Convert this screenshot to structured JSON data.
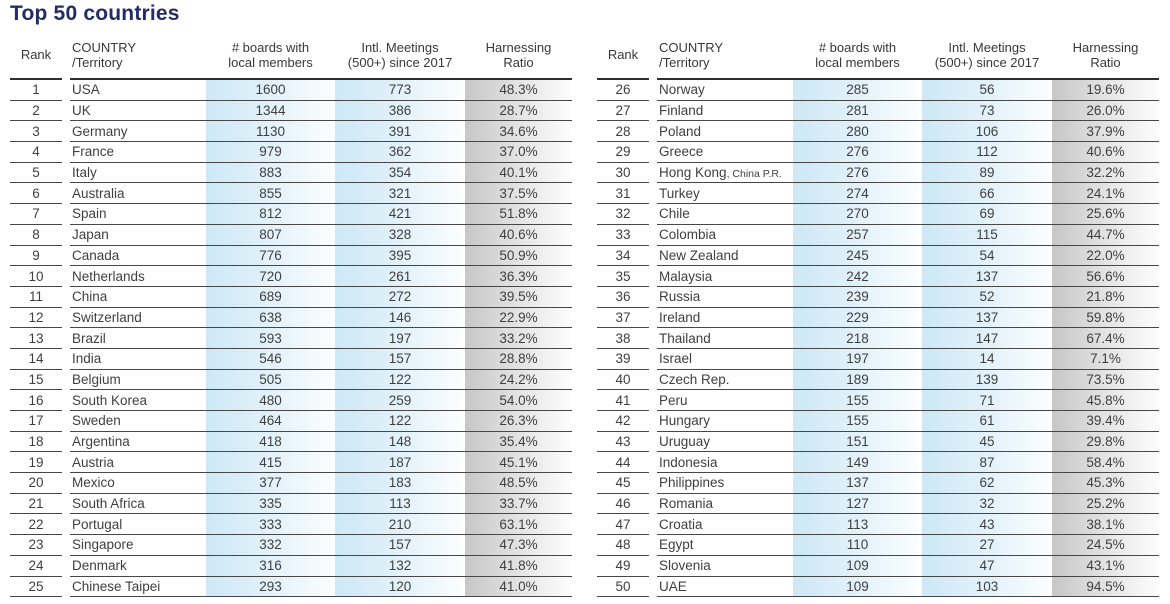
{
  "title": "Top 50 countries",
  "colors": {
    "title_navy": "#232d64",
    "column_blue": "#cde8f6",
    "column_gray": "#c6c6c6"
  },
  "headers": {
    "rank": "Rank",
    "country_line1": "COUNTRY",
    "country_line2": "/Territory",
    "boards_line1": "# boards with",
    "boards_line2": "local members",
    "meetings_line1": "Intl. Meetings",
    "meetings_line2": "(500+) since 2017",
    "ratio_line1": "Harnessing",
    "ratio_line2": "Ratio"
  },
  "tables": [
    {
      "name": "ranks-1-25",
      "rows": [
        [
          "1",
          "USA",
          "1600",
          "773",
          "48.3%"
        ],
        [
          "2",
          "UK",
          "1344",
          "386",
          "28.7%"
        ],
        [
          "3",
          "Germany",
          "1130",
          "391",
          "34.6%"
        ],
        [
          "4",
          "France",
          "979",
          "362",
          "37.0%"
        ],
        [
          "5",
          "Italy",
          "883",
          "354",
          "40.1%"
        ],
        [
          "6",
          "Australia",
          "855",
          "321",
          "37.5%"
        ],
        [
          "7",
          "Spain",
          "812",
          "421",
          "51.8%"
        ],
        [
          "8",
          "Japan",
          "807",
          "328",
          "40.6%"
        ],
        [
          "9",
          "Canada",
          "776",
          "395",
          "50.9%"
        ],
        [
          "10",
          "Netherlands",
          "720",
          "261",
          "36.3%"
        ],
        [
          "11",
          "China",
          "689",
          "272",
          "39.5%"
        ],
        [
          "12",
          "Switzerland",
          "638",
          "146",
          "22.9%"
        ],
        [
          "13",
          "Brazil",
          "593",
          "197",
          "33.2%"
        ],
        [
          "14",
          "India",
          "546",
          "157",
          "28.8%"
        ],
        [
          "15",
          "Belgium",
          "505",
          "122",
          "24.2%"
        ],
        [
          "16",
          "South Korea",
          "480",
          "259",
          "54.0%"
        ],
        [
          "17",
          "Sweden",
          "464",
          "122",
          "26.3%"
        ],
        [
          "18",
          "Argentina",
          "418",
          "148",
          "35.4%"
        ],
        [
          "19",
          "Austria",
          "415",
          "187",
          "45.1%"
        ],
        [
          "20",
          "Mexico",
          "377",
          "183",
          "48.5%"
        ],
        [
          "21",
          "South Africa",
          "335",
          "113",
          "33.7%"
        ],
        [
          "22",
          "Portugal",
          "333",
          "210",
          "63.1%"
        ],
        [
          "23",
          "Singapore",
          "332",
          "157",
          "47.3%"
        ],
        [
          "24",
          "Denmark",
          "316",
          "132",
          "41.8%"
        ],
        [
          "25",
          "Chinese Taipei",
          "293",
          "120",
          "41.0%"
        ]
      ]
    },
    {
      "name": "ranks-26-50",
      "rows": [
        [
          "26",
          "Norway",
          "285",
          "56",
          "19.6%"
        ],
        [
          "27",
          "Finland",
          "281",
          "73",
          "26.0%"
        ],
        [
          "28",
          "Poland",
          "280",
          "106",
          "37.9%"
        ],
        [
          "29",
          "Greece",
          "276",
          "112",
          "40.6%"
        ],
        [
          "30",
          "Hong Kong",
          "276",
          "89",
          "32.2%",
          ", China P.R."
        ],
        [
          "31",
          "Turkey",
          "274",
          "66",
          "24.1%"
        ],
        [
          "32",
          "Chile",
          "270",
          "69",
          "25.6%"
        ],
        [
          "33",
          "Colombia",
          "257",
          "115",
          "44.7%"
        ],
        [
          "34",
          "New Zealand",
          "245",
          "54",
          "22.0%"
        ],
        [
          "35",
          "Malaysia",
          "242",
          "137",
          "56.6%"
        ],
        [
          "36",
          "Russia",
          "239",
          "52",
          "21.8%"
        ],
        [
          "37",
          "Ireland",
          "229",
          "137",
          "59.8%"
        ],
        [
          "38",
          "Thailand",
          "218",
          "147",
          "67.4%"
        ],
        [
          "39",
          "Israel",
          "197",
          "14",
          "7.1%"
        ],
        [
          "40",
          "Czech Rep.",
          "189",
          "139",
          "73.5%"
        ],
        [
          "41",
          "Peru",
          "155",
          "71",
          "45.8%"
        ],
        [
          "42",
          "Hungary",
          "155",
          "61",
          "39.4%"
        ],
        [
          "43",
          "Uruguay",
          "151",
          "45",
          "29.8%"
        ],
        [
          "44",
          "Indonesia",
          "149",
          "87",
          "58.4%"
        ],
        [
          "45",
          "Philippines",
          "137",
          "62",
          "45.3%"
        ],
        [
          "46",
          "Romania",
          "127",
          "32",
          "25.2%"
        ],
        [
          "47",
          "Croatia",
          "113",
          "43",
          "38.1%"
        ],
        [
          "48",
          "Egypt",
          "110",
          "27",
          "24.5%"
        ],
        [
          "49",
          "Slovenia",
          "109",
          "47",
          "43.1%"
        ],
        [
          "50",
          "UAE",
          "109",
          "103",
          "94.5%"
        ]
      ]
    }
  ]
}
